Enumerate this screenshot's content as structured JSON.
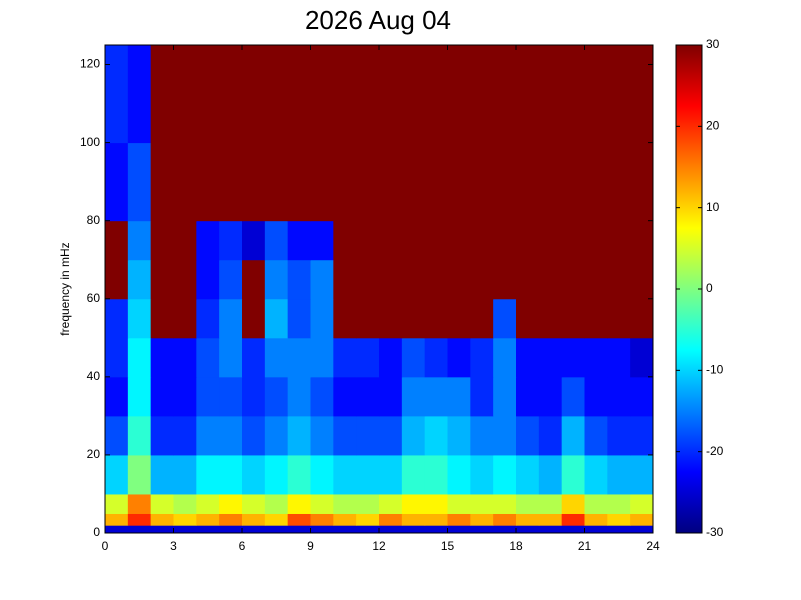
{
  "chart_data": {
    "type": "heatmap",
    "title": "2026 Aug 04",
    "ylabel": "frequency in mHz",
    "x_edges": [
      0,
      1,
      2,
      3,
      4,
      5,
      6,
      7,
      8,
      9,
      10,
      11,
      12,
      13,
      14,
      15,
      16,
      17,
      18,
      19,
      20,
      21,
      22,
      23,
      24
    ],
    "y_edges": [
      0,
      2,
      5,
      10,
      20,
      30,
      40,
      50,
      60,
      70,
      80,
      100,
      125
    ],
    "values": [
      [
        -25,
        -25,
        -25,
        -25,
        -25,
        -25,
        -25,
        -25,
        -25,
        -25,
        -25,
        -25,
        -25,
        -25,
        -25,
        -25,
        -25,
        -25,
        -25,
        -25,
        -25,
        -25,
        -25,
        -25
      ],
      [
        12,
        20,
        12,
        10,
        12,
        15,
        12,
        10,
        18,
        15,
        12,
        10,
        15,
        12,
        12,
        15,
        12,
        15,
        12,
        12,
        20,
        12,
        10,
        12
      ],
      [
        5,
        15,
        5,
        3,
        5,
        8,
        5,
        3,
        8,
        5,
        3,
        3,
        5,
        8,
        8,
        5,
        5,
        5,
        3,
        3,
        10,
        3,
        3,
        5
      ],
      [
        -10,
        0,
        -12,
        -12,
        -8,
        -8,
        -10,
        -8,
        -5,
        -8,
        -10,
        -10,
        -10,
        -5,
        -5,
        -8,
        -10,
        -8,
        -10,
        -12,
        -5,
        -10,
        -12,
        -12
      ],
      [
        -18,
        -5,
        -20,
        -20,
        -15,
        -15,
        -18,
        -15,
        -12,
        -15,
        -18,
        -18,
        -18,
        -12,
        -10,
        -12,
        -15,
        -15,
        -18,
        -20,
        -12,
        -18,
        -20,
        -20
      ],
      [
        -22,
        -8,
        -22,
        -22,
        -18,
        -18,
        -20,
        -18,
        -15,
        -18,
        -22,
        -22,
        -22,
        -15,
        -15,
        -15,
        -20,
        -15,
        -22,
        -22,
        -18,
        -22,
        -22,
        -22
      ],
      [
        -20,
        -8,
        -22,
        -22,
        -18,
        -15,
        -20,
        -15,
        -15,
        -15,
        -20,
        -20,
        -22,
        -18,
        -20,
        -22,
        -20,
        -15,
        -22,
        -22,
        -22,
        -22,
        -22,
        -25
      ],
      [
        -20,
        -10,
        30,
        30,
        -20,
        -15,
        30,
        -12,
        -18,
        -15,
        30,
        30,
        30,
        30,
        30,
        30,
        30,
        -18,
        30,
        30,
        30,
        30,
        30,
        30
      ],
      [
        30,
        -12,
        30,
        30,
        -22,
        -18,
        30,
        -15,
        -18,
        -15,
        30,
        30,
        30,
        30,
        30,
        30,
        30,
        30,
        30,
        30,
        30,
        30,
        30,
        30
      ],
      [
        30,
        -15,
        30,
        30,
        -22,
        -20,
        -25,
        -18,
        -22,
        -22,
        30,
        30,
        30,
        30,
        30,
        30,
        30,
        30,
        30,
        30,
        30,
        30,
        30,
        30
      ],
      [
        -22,
        -18,
        30,
        30,
        30,
        30,
        30,
        30,
        30,
        30,
        30,
        30,
        30,
        30,
        30,
        30,
        30,
        30,
        30,
        30,
        30,
        30,
        30,
        30
      ],
      [
        -20,
        -22,
        30,
        30,
        30,
        30,
        30,
        30,
        30,
        30,
        30,
        30,
        30,
        30,
        30,
        30,
        30,
        30,
        30,
        30,
        30,
        30,
        30,
        30
      ]
    ],
    "xlim": [
      0,
      24
    ],
    "ylim": [
      0,
      125
    ],
    "xticks": [
      0,
      3,
      6,
      9,
      12,
      15,
      18,
      21,
      24
    ],
    "yticks": [
      0,
      20,
      40,
      60,
      80,
      100,
      120
    ],
    "colormap": "jet",
    "clim": [
      -30,
      30
    ],
    "cticks": [
      -30,
      -20,
      -10,
      0,
      10,
      20,
      30
    ]
  }
}
